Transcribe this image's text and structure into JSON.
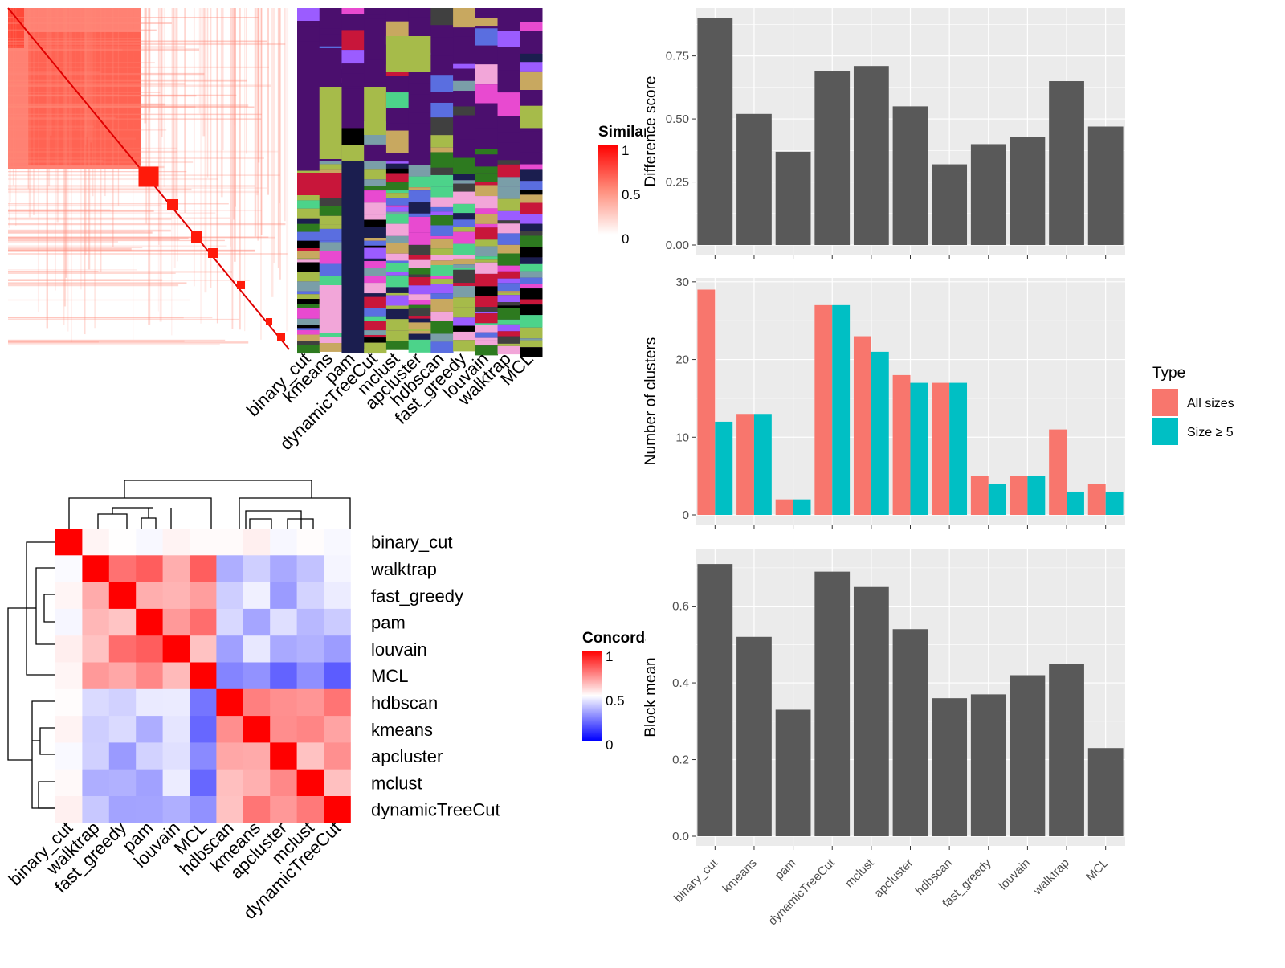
{
  "similarity_heatmap": {
    "legend_title": "Similarity",
    "legend_ticks": [
      "1",
      "0.5",
      "0"
    ],
    "method_labels": [
      "binary_cut",
      "kmeans",
      "pam",
      "dynamicTreeCut",
      "mclust",
      "apcluster",
      "hdbscan",
      "fast_greedy",
      "louvain",
      "walktrap",
      "MCL"
    ]
  },
  "concordance_heatmap": {
    "legend_title": "Concordance",
    "legend_ticks": [
      "1",
      "0.5",
      "0"
    ],
    "row_labels": [
      "binary_cut",
      "walktrap",
      "fast_greedy",
      "pam",
      "louvain",
      "MCL",
      "hdbscan",
      "kmeans",
      "apcluster",
      "mclust",
      "dynamicTreeCut"
    ],
    "col_labels": [
      "binary_cut",
      "walktrap",
      "fast_greedy",
      "pam",
      "louvain",
      "MCL",
      "hdbscan",
      "kmeans",
      "apcluster",
      "mclust",
      "dynamicTreeCut"
    ]
  },
  "chart_data": [
    {
      "type": "bar",
      "ylabel": "Difference score",
      "categories": [
        "binary_cut",
        "kmeans",
        "pam",
        "dynamicTreeCut",
        "mclust",
        "apcluster",
        "hdbscan",
        "fast_greedy",
        "louvain",
        "walktrap",
        "MCL"
      ],
      "values": [
        0.9,
        0.52,
        0.37,
        0.69,
        0.71,
        0.55,
        0.32,
        0.4,
        0.43,
        0.65,
        0.47
      ],
      "yticks": [
        "0.00",
        "0.25",
        "0.50",
        "0.75"
      ],
      "ylim": [
        0,
        0.94
      ],
      "color": "#595959"
    },
    {
      "type": "bar",
      "ylabel": "Number of clusters",
      "categories": [
        "binary_cut",
        "kmeans",
        "pam",
        "dynamicTreeCut",
        "mclust",
        "apcluster",
        "hdbscan",
        "fast_greedy",
        "louvain",
        "walktrap",
        "MCL"
      ],
      "series": [
        {
          "name": "All sizes",
          "color": "#F8766D",
          "values": [
            29,
            13,
            2,
            27,
            23,
            18,
            17,
            5,
            5,
            11,
            4
          ]
        },
        {
          "name": "Size ≥ 5",
          "color": "#00BFC4",
          "values": [
            12,
            13,
            2,
            27,
            21,
            17,
            17,
            4,
            5,
            3,
            3
          ]
        }
      ],
      "yticks": [
        "0",
        "10",
        "20",
        "30"
      ],
      "ylim": [
        0,
        30.5
      ],
      "legend": {
        "title": "Type",
        "position": "right"
      }
    },
    {
      "type": "bar",
      "ylabel": "Block mean",
      "categories": [
        "binary_cut",
        "kmeans",
        "pam",
        "dynamicTreeCut",
        "mclust",
        "apcluster",
        "hdbscan",
        "fast_greedy",
        "louvain",
        "walktrap",
        "MCL"
      ],
      "values": [
        0.71,
        0.52,
        0.33,
        0.69,
        0.65,
        0.54,
        0.36,
        0.37,
        0.42,
        0.45,
        0.23
      ],
      "yticks": [
        "0.0",
        "0.2",
        "0.4",
        "0.6"
      ],
      "ylim": [
        0,
        0.75
      ],
      "color": "#595959"
    }
  ]
}
